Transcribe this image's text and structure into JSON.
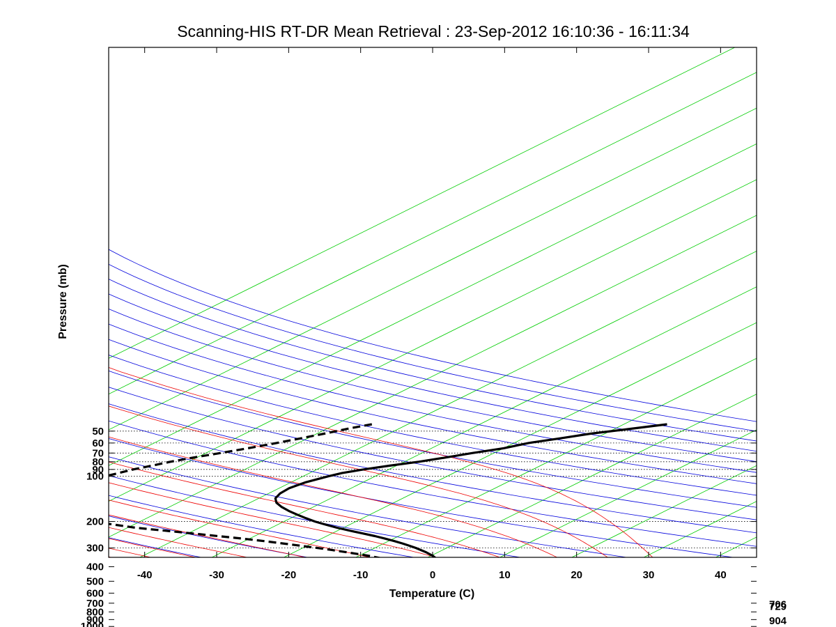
{
  "chart_data": {
    "type": "line",
    "title": "Scanning-HIS RT-DR Mean Retrieval : 23-Sep-2012 16:10:36 - 16:11:34",
    "xlabel": "Temperature (C)",
    "ylabel": "Pressure (mb)",
    "xlim": [
      -45,
      45
    ],
    "ylim_pressure": [
      45,
      1050
    ],
    "x_ticks": [
      -40,
      -30,
      -20,
      -10,
      0,
      10,
      20,
      30,
      40
    ],
    "y_ticks": [
      50,
      60,
      70,
      80,
      90,
      100,
      200,
      300,
      400,
      500,
      600,
      700,
      800,
      900,
      1000
    ],
    "grid": "dotted horizontal at pressure ticks",
    "skew_dx_per_decade_c": 42,
    "background_lines": {
      "isotherms_c": [
        -120,
        -110,
        -100,
        -90,
        -80,
        -70,
        -60,
        -50,
        -40,
        -30,
        -20,
        -10,
        0,
        10,
        20,
        30,
        40
      ],
      "dry_adiabats_theta_k": [
        220,
        240,
        260,
        280,
        300,
        320,
        340,
        360,
        380,
        400,
        420,
        440,
        460,
        480,
        500,
        520,
        540,
        560,
        580,
        600,
        620,
        640
      ],
      "moist_adiabats_start_c_at_1000mb": [
        -20,
        -15,
        -10,
        -5,
        0,
        4,
        8,
        12,
        16,
        20,
        24,
        28,
        32,
        36,
        40
      ],
      "isotherm_color": "#00cc00",
      "dry_adiabat_color": "#0000dd",
      "moist_adiabat_color": "#ee0000"
    },
    "series": [
      {
        "name": "Temperature",
        "style": "solid",
        "color": "#000000",
        "pressure_mb": [
          45,
          48,
          52,
          56,
          60,
          65,
          70,
          75,
          80,
          85,
          90,
          95,
          100,
          110,
          120,
          130,
          140,
          150,
          160,
          170,
          180,
          190,
          200,
          210,
          220,
          230,
          240,
          250,
          260,
          270,
          280,
          290,
          300,
          320,
          340,
          360,
          380,
          400,
          420,
          440,
          460,
          480,
          500,
          520,
          540,
          560,
          580,
          600,
          620,
          640,
          660,
          680,
          700,
          720,
          740,
          760,
          780,
          800,
          820,
          840,
          860,
          880,
          900,
          925,
          950,
          975,
          990,
          1005,
          1025,
          1040
        ],
        "temperature_c": [
          -24,
          -27.5,
          -32,
          -35,
          -38,
          -40,
          -43,
          -45.5,
          -48,
          -51,
          -53.5,
          -55.5,
          -56.5,
          -58,
          -58.6,
          -58.4,
          -57.7,
          -56.3,
          -54.4,
          -52.3,
          -50.1,
          -47.9,
          -45.7,
          -43.3,
          -40.9,
          -38.3,
          -35.8,
          -33.3,
          -31.2,
          -29.2,
          -27.4,
          -25.8,
          -24.3,
          -21.7,
          -19.6,
          -17.9,
          -16.6,
          -15.6,
          -15,
          -14.6,
          -14.4,
          -14.1,
          -13.9,
          -13.7,
          -13.7,
          -13.8,
          -14.1,
          -14.5,
          -14,
          -13,
          -12.1,
          -11.3,
          -10.6,
          -10,
          -9.3,
          -8.6,
          -7.9,
          -7.1,
          -6.3,
          -5.5,
          -4.8,
          -4.2,
          -3.7,
          -3.4,
          -3.5,
          -3.5,
          -3.8,
          -4.2,
          -3.9,
          -3.8
        ]
      },
      {
        "name": "Dewpoint",
        "style": "dashed",
        "color": "#000000",
        "pressure_mb": [
          45,
          48,
          52,
          56,
          60,
          65,
          70,
          75,
          80,
          85,
          90,
          95,
          100,
          105,
          110,
          115,
          120,
          125,
          130,
          135,
          140,
          145,
          150,
          155,
          160,
          165,
          170,
          175,
          180,
          185,
          190,
          195,
          200,
          205,
          210,
          215,
          220,
          225,
          230,
          240,
          250,
          260,
          270,
          280,
          290,
          300,
          310,
          320,
          330,
          340,
          350,
          360,
          370,
          380,
          390,
          400,
          410,
          420,
          430,
          440,
          460,
          480,
          500,
          520,
          540,
          560,
          580,
          600,
          620,
          640,
          660,
          680,
          700,
          720,
          740,
          760,
          780,
          800,
          820,
          840,
          860,
          880,
          900,
          920,
          940,
          960,
          980,
          1000,
          1015,
          1030
        ],
        "temperature_c": [
          -65,
          -67,
          -69,
          -71,
          -73,
          -75.5,
          -78,
          -80.5,
          -82.5,
          -84,
          -85.5,
          -86.5,
          -87.5,
          -88.8,
          -90.1,
          -91.4,
          -92.4,
          -93,
          -93.5,
          -93.8,
          -94,
          -94,
          -93.6,
          -93,
          -92,
          -90.7,
          -89.1,
          -87.2,
          -85.2,
          -83.1,
          -81,
          -78.8,
          -76.5,
          -74.6,
          -72.7,
          -70.8,
          -68.9,
          -66.5,
          -64,
          -59.5,
          -55.1,
          -51,
          -47.3,
          -44,
          -40.9,
          -38,
          -35.3,
          -32.8,
          -30.5,
          -28.3,
          -26.5,
          -25.5,
          -25.5,
          -25.3,
          -25.7,
          -26.3,
          -27.1,
          -27.4,
          -26.5,
          -25.6,
          -23.6,
          -22.1,
          -21.8,
          -20.7,
          -19.1,
          -17.5,
          -17.8,
          -18,
          -17.7,
          -17.1,
          -15.3,
          -13.2,
          -12.3,
          -11.9,
          -12.2,
          -11.7,
          -10.7,
          -9.8,
          -8.9,
          -8.2,
          -7.6,
          -6.9,
          -6.3,
          -5.9,
          -5.8,
          -5.9,
          -5.8,
          -6.6,
          -7.3,
          -7.8
        ]
      }
    ],
    "right_labels": [
      "706",
      "729",
      "904"
    ],
    "right_label_pressure_mb": [
      706,
      729,
      904
    ]
  }
}
